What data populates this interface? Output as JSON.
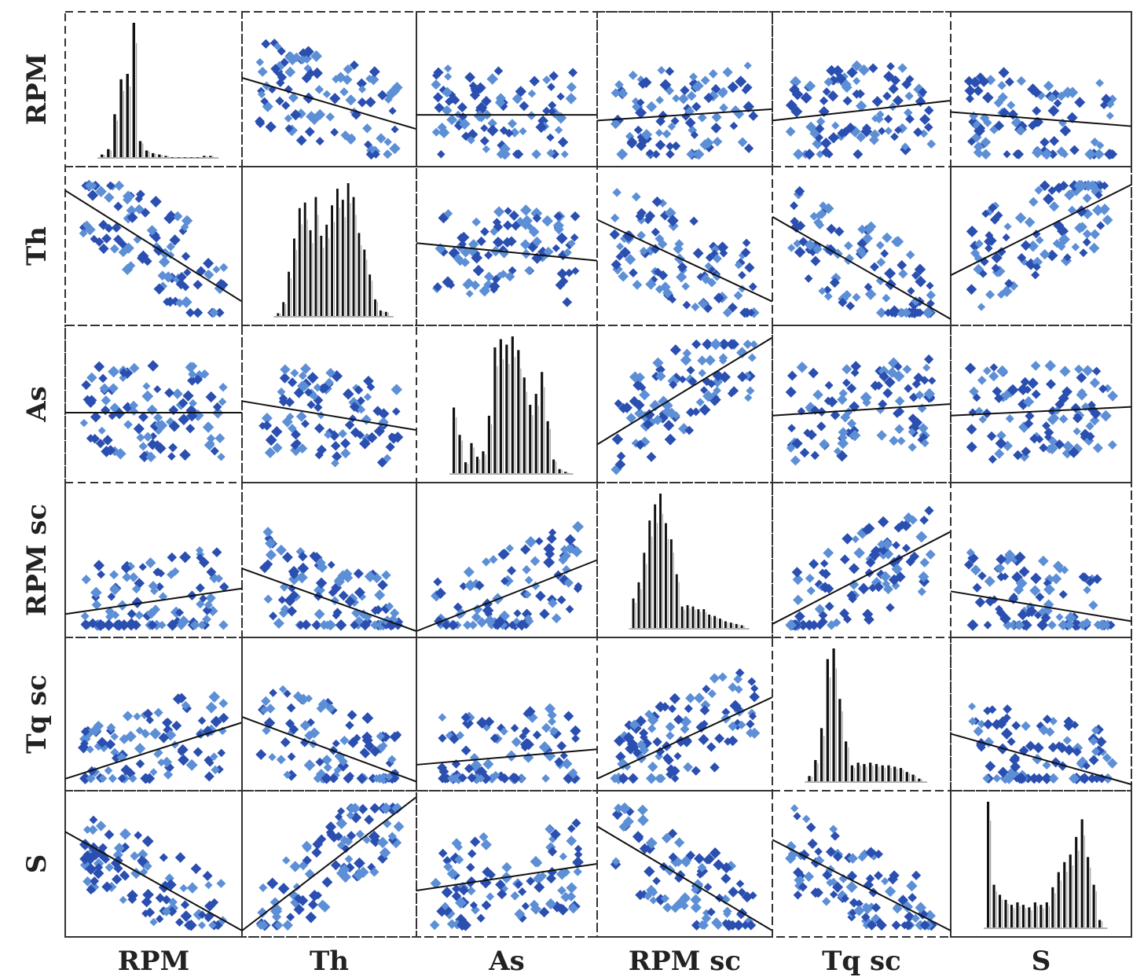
{
  "chart_data": {
    "type": "scatter-matrix",
    "variables": [
      "RPM",
      "Th",
      "As",
      "RPM sc",
      "Tq sc",
      "S"
    ],
    "row_labels": [
      "RPM",
      "Th",
      "As",
      "RPM sc",
      "Tq sc",
      "S"
    ],
    "column_labels": [
      "RPM",
      "Th",
      "As",
      "RPM sc",
      "Tq sc",
      "S"
    ],
    "diagonal": "histogram",
    "off_diagonal": "scatter-with-linear-fit",
    "point_colors": {
      "dark": "#2a4fb0",
      "light": "#5d8fd6"
    },
    "bar_color": "#111111",
    "histograms": {
      "RPM": [
        0.02,
        0.06,
        0.32,
        0.58,
        0.62,
        1.0,
        0.12,
        0.05,
        0.03,
        0.02,
        0.01,
        0.0,
        0.0,
        0.0,
        0.0,
        0.0,
        0.01,
        0.01
      ],
      "Th": [
        0.02,
        0.1,
        0.32,
        0.56,
        0.78,
        0.82,
        0.62,
        0.86,
        0.58,
        0.66,
        0.8,
        0.92,
        0.84,
        0.96,
        0.86,
        0.6,
        0.48,
        0.3,
        0.12,
        0.04,
        0.03
      ],
      "As": [
        0.48,
        0.28,
        0.08,
        0.22,
        0.12,
        0.16,
        0.42,
        0.92,
        0.98,
        0.94,
        1.0,
        0.9,
        0.7,
        0.5,
        0.58,
        0.74,
        0.38,
        0.1,
        0.03,
        0.01
      ],
      "RPM sc": [
        0.22,
        0.34,
        0.56,
        0.8,
        0.92,
        1.0,
        0.78,
        0.66,
        0.4,
        0.16,
        0.17,
        0.16,
        0.14,
        0.14,
        0.1,
        0.09,
        0.07,
        0.05,
        0.04,
        0.03,
        0.02
      ],
      "Tq sc": [
        0.04,
        0.16,
        0.4,
        0.92,
        1.0,
        0.62,
        0.3,
        0.12,
        0.14,
        0.13,
        0.14,
        0.13,
        0.12,
        0.12,
        0.11,
        0.1,
        0.07,
        0.05,
        0.02
      ],
      "S": [
        1.0,
        0.34,
        0.26,
        0.22,
        0.18,
        0.2,
        0.18,
        0.16,
        0.2,
        0.18,
        0.2,
        0.32,
        0.44,
        0.52,
        0.58,
        0.72,
        0.86,
        0.56,
        0.34,
        0.06
      ]
    },
    "fit_lines": [
      {
        "row": "RPM",
        "col": "Th",
        "y_start": 0.58,
        "y_end": 0.22
      },
      {
        "row": "RPM",
        "col": "As",
        "y_start": 0.32,
        "y_end": 0.32
      },
      {
        "row": "RPM",
        "col": "RPM sc",
        "y_start": 0.28,
        "y_end": 0.36
      },
      {
        "row": "RPM",
        "col": "Tq sc",
        "y_start": 0.28,
        "y_end": 0.42
      },
      {
        "row": "RPM",
        "col": "S",
        "y_start": 0.34,
        "y_end": 0.24
      },
      {
        "row": "Th",
        "col": "RPM",
        "y_start": 0.88,
        "y_end": 0.12
      },
      {
        "row": "Th",
        "col": "As",
        "y_start": 0.52,
        "y_end": 0.4
      },
      {
        "row": "Th",
        "col": "RPM sc",
        "y_start": 0.68,
        "y_end": 0.12
      },
      {
        "row": "Th",
        "col": "Tq sc",
        "y_start": 0.7,
        "y_end": 0.0
      },
      {
        "row": "Th",
        "col": "S",
        "y_start": 0.3,
        "y_end": 0.92
      },
      {
        "row": "As",
        "col": "RPM",
        "y_start": 0.44,
        "y_end": 0.44
      },
      {
        "row": "As",
        "col": "Th",
        "y_start": 0.52,
        "y_end": 0.32
      },
      {
        "row": "As",
        "col": "RPM sc",
        "y_start": 0.22,
        "y_end": 0.96
      },
      {
        "row": "As",
        "col": "Tq sc",
        "y_start": 0.42,
        "y_end": 0.5
      },
      {
        "row": "As",
        "col": "S",
        "y_start": 0.42,
        "y_end": 0.48
      },
      {
        "row": "RPM sc",
        "col": "RPM",
        "y_start": 0.12,
        "y_end": 0.3
      },
      {
        "row": "RPM sc",
        "col": "Th",
        "y_start": 0.44,
        "y_end": 0.0
      },
      {
        "row": "RPM sc",
        "col": "As",
        "y_start": 0.0,
        "y_end": 0.5
      },
      {
        "row": "RPM sc",
        "col": "Tq sc",
        "y_start": 0.05,
        "y_end": 0.7
      },
      {
        "row": "RPM sc",
        "col": "S",
        "y_start": 0.28,
        "y_end": 0.07
      },
      {
        "row": "Tq sc",
        "col": "RPM",
        "y_start": 0.04,
        "y_end": 0.44
      },
      {
        "row": "Tq sc",
        "col": "Th",
        "y_start": 0.48,
        "y_end": 0.02
      },
      {
        "row": "Tq sc",
        "col": "As",
        "y_start": 0.14,
        "y_end": 0.25
      },
      {
        "row": "Tq sc",
        "col": "RPM sc",
        "y_start": 0.04,
        "y_end": 0.62
      },
      {
        "row": "Tq sc",
        "col": "S",
        "y_start": 0.36,
        "y_end": 0.0
      },
      {
        "row": "S",
        "col": "RPM",
        "y_start": 0.74,
        "y_end": 0.0
      },
      {
        "row": "S",
        "col": "Th",
        "y_start": 0.0,
        "y_end": 1.0
      },
      {
        "row": "S",
        "col": "As",
        "y_start": 0.3,
        "y_end": 0.5
      },
      {
        "row": "S",
        "col": "RPM sc",
        "y_start": 0.78,
        "y_end": 0.0
      },
      {
        "row": "S",
        "col": "Tq sc",
        "y_start": 0.68,
        "y_end": 0.0
      }
    ]
  }
}
